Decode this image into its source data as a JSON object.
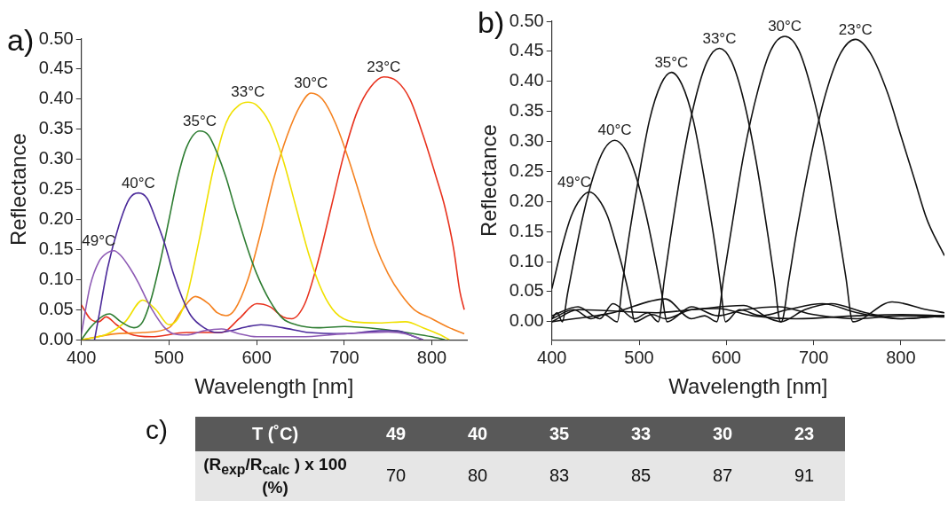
{
  "chart_data": [
    {
      "type": "line",
      "title": "a)",
      "xlabel": "Wavelength [nm]",
      "ylabel": "Reflectance",
      "xlim": [
        400,
        840
      ],
      "xticks": [
        400,
        500,
        600,
        700,
        800
      ],
      "ylim": [
        0,
        0.5
      ],
      "yticks": [
        {
          "value": 0,
          "label": "0.00"
        },
        {
          "value": 0.05,
          "label": "0.05"
        },
        {
          "value": 0.1,
          "label": "0.10"
        },
        {
          "value": 0.15,
          "label": "0.15"
        },
        {
          "value": 0.2,
          "label": "0.20"
        },
        {
          "value": 0.25,
          "label": "0.25"
        },
        {
          "value": 0.3,
          "label": "0.30"
        },
        {
          "value": 0.35,
          "label": "0.35"
        },
        {
          "value": 0.4,
          "label": "0.40"
        },
        {
          "value": 0.45,
          "label": "0.45"
        },
        {
          "value": 0.5,
          "label": "0.50"
        }
      ],
      "grid": false,
      "legend": false,
      "marker": "none",
      "line_style": "solid",
      "series": [
        {
          "name": "49°C",
          "color": "#8e5bb5",
          "x": [
            400,
            410,
            420,
            430,
            437,
            445,
            455,
            465,
            475,
            485,
            495,
            505,
            520,
            540,
            560,
            580,
            600,
            650,
            700,
            750,
            770,
            790
          ],
          "values": [
            0.01,
            0.09,
            0.13,
            0.145,
            0.148,
            0.14,
            0.12,
            0.095,
            0.065,
            0.04,
            0.02,
            0.01,
            0.008,
            0.015,
            0.018,
            0.01,
            0.005,
            0.005,
            0.01,
            0.013,
            0.01,
            0
          ]
        },
        {
          "name": "40°C",
          "color": "#4b2a9a",
          "x": [
            415,
            420,
            430,
            445,
            455,
            465,
            475,
            485,
            495,
            505,
            515,
            525,
            540,
            555,
            570,
            590,
            605,
            630,
            660,
            700,
            740,
            760,
            780,
            790
          ],
          "values": [
            0,
            0.04,
            0.12,
            0.2,
            0.235,
            0.244,
            0.235,
            0.2,
            0.16,
            0.11,
            0.07,
            0.04,
            0.02,
            0.012,
            0.015,
            0.022,
            0.025,
            0.02,
            0.012,
            0.01,
            0.015,
            0.015,
            0.005,
            0
          ]
        },
        {
          "name": "35°C",
          "color": "#2e7d32",
          "x": [
            400,
            410,
            425,
            432,
            445,
            460,
            470,
            480,
            490,
            500,
            510,
            520,
            535,
            545,
            555,
            565,
            575,
            590,
            600,
            615,
            630,
            645,
            670,
            700,
            740,
            780,
            800,
            815
          ],
          "values": [
            0,
            0.02,
            0.04,
            0.043,
            0.03,
            0.02,
            0.03,
            0.07,
            0.13,
            0.2,
            0.27,
            0.32,
            0.347,
            0.34,
            0.31,
            0.27,
            0.22,
            0.15,
            0.11,
            0.065,
            0.035,
            0.025,
            0.02,
            0.022,
            0.018,
            0.01,
            0.005,
            0
          ]
        },
        {
          "name": "33°C",
          "color": "#f0e000",
          "x": [
            400,
            430,
            450,
            470,
            485,
            500,
            510,
            520,
            535,
            550,
            565,
            580,
            590,
            600,
            615,
            630,
            645,
            660,
            675,
            690,
            710,
            740,
            770,
            790,
            810,
            820
          ],
          "values": [
            0,
            0.01,
            0.03,
            0.066,
            0.05,
            0.025,
            0.035,
            0.07,
            0.17,
            0.28,
            0.36,
            0.39,
            0.395,
            0.39,
            0.36,
            0.3,
            0.22,
            0.14,
            0.08,
            0.045,
            0.03,
            0.028,
            0.03,
            0.02,
            0.008,
            0
          ]
        },
        {
          "name": "30°C",
          "color": "#f58220",
          "x": [
            400,
            440,
            470,
            500,
            515,
            530,
            545,
            555,
            565,
            575,
            590,
            605,
            620,
            635,
            650,
            662,
            675,
            690,
            705,
            720,
            735,
            750,
            765,
            780,
            800,
            820,
            837
          ],
          "values": [
            0,
            0.01,
            0.012,
            0.02,
            0.05,
            0.072,
            0.06,
            0.045,
            0.04,
            0.05,
            0.1,
            0.18,
            0.27,
            0.34,
            0.39,
            0.41,
            0.4,
            0.36,
            0.3,
            0.23,
            0.16,
            0.11,
            0.075,
            0.05,
            0.035,
            0.02,
            0.01
          ]
        },
        {
          "name": "23°C",
          "color": "#e8321e",
          "x": [
            400,
            410,
            420,
            428,
            440,
            455,
            480,
            520,
            560,
            580,
            600,
            615,
            630,
            640,
            655,
            670,
            685,
            700,
            715,
            730,
            745,
            760,
            775,
            790,
            805,
            815,
            825,
            832,
            837
          ],
          "values": [
            0.058,
            0.035,
            0.03,
            0.038,
            0.025,
            0.01,
            0.005,
            0.012,
            0.012,
            0.035,
            0.06,
            0.055,
            0.038,
            0.035,
            0.06,
            0.13,
            0.22,
            0.31,
            0.38,
            0.42,
            0.437,
            0.43,
            0.4,
            0.34,
            0.27,
            0.22,
            0.15,
            0.08,
            0.05
          ]
        }
      ]
    },
    {
      "type": "line",
      "title": "b)",
      "xlabel": "Wavelength [nm]",
      "ylabel": "Reflectance",
      "xlim": [
        400,
        850
      ],
      "xticks": [
        400,
        500,
        600,
        700,
        800
      ],
      "ylim": [
        -0.03,
        0.5
      ],
      "yticks": [
        {
          "value": 0,
          "label": "0.00"
        },
        {
          "value": 0.05,
          "label": "0.05"
        },
        {
          "value": 0.1,
          "label": "0.10"
        },
        {
          "value": 0.15,
          "label": "0.15"
        },
        {
          "value": 0.2,
          "label": "0.20"
        },
        {
          "value": 0.25,
          "label": "0.25"
        },
        {
          "value": 0.3,
          "label": "0.30"
        },
        {
          "value": 0.35,
          "label": "0.35"
        },
        {
          "value": 0.4,
          "label": "0.40"
        },
        {
          "value": 0.45,
          "label": "0.45"
        },
        {
          "value": 0.5,
          "label": "0.50"
        }
      ],
      "grid": false,
      "legend": false,
      "marker": "none",
      "line_style": "solid",
      "series": [
        {
          "name": "49°C",
          "color": "#111111",
          "x": [
            400,
            412,
            422,
            433,
            443,
            453,
            464,
            474,
            485,
            490,
            495,
            515,
            530,
            560,
            590,
            630,
            680,
            750,
            800,
            850
          ],
          "values": [
            0.055,
            0.127,
            0.175,
            0.205,
            0.216,
            0.205,
            0.175,
            0.127,
            0.067,
            0.034,
            0,
            0.012,
            0.005,
            0.02,
            0.022,
            0.01,
            0.005,
            0.01,
            0.012,
            0.01
          ]
        },
        {
          "name": "40°C",
          "color": "#111111",
          "x": [
            400,
            406,
            412,
            418,
            424,
            436,
            448,
            460,
            472,
            484,
            496,
            508,
            520,
            526,
            532,
            560,
            590,
            620,
            660,
            700,
            750,
            800,
            850
          ],
          "values": [
            0.005,
            0.015,
            0,
            0.047,
            0.093,
            0.178,
            0.244,
            0.287,
            0.302,
            0.287,
            0.244,
            0.178,
            0.093,
            0.047,
            0,
            0.025,
            0.01,
            0.02,
            0.025,
            0.012,
            0.005,
            0.01,
            0.008
          ]
        },
        {
          "name": "35°C",
          "color": "#111111",
          "x": [
            400,
            425,
            445,
            460,
            475,
            481,
            487,
            500,
            512,
            525,
            537,
            549,
            562,
            574,
            587,
            593,
            599,
            615,
            640,
            670,
            710,
            750,
            800,
            850
          ],
          "values": [
            0.005,
            0.02,
            0.005,
            0.012,
            0,
            0.065,
            0.128,
            0.244,
            0.336,
            0.395,
            0.415,
            0.395,
            0.336,
            0.244,
            0.128,
            0.065,
            0,
            0.02,
            0.01,
            0.02,
            0.03,
            0.015,
            0.005,
            0.01
          ]
        },
        {
          "name": "33°C",
          "color": "#111111",
          "x": [
            400,
            430,
            455,
            470,
            495,
            510,
            522,
            529,
            536,
            550,
            564,
            578,
            592,
            606,
            620,
            634,
            648,
            655,
            662,
            690,
            720,
            760,
            800,
            850
          ],
          "values": [
            0.01,
            0.025,
            0.005,
            0.03,
            0.005,
            0.015,
            0,
            0.071,
            0.141,
            0.268,
            0.368,
            0.433,
            0.455,
            0.433,
            0.368,
            0.268,
            0.141,
            0.071,
            0,
            0.02,
            0.03,
            0.015,
            0.005,
            0.01
          ]
        },
        {
          "name": "30°C",
          "color": "#111111",
          "x": [
            400,
            470,
            530,
            560,
            575,
            589,
            597,
            605,
            620,
            636,
            651,
            667,
            683,
            698,
            714,
            729,
            737,
            745,
            790,
            830,
            850
          ],
          "values": [
            0,
            0.015,
            0.038,
            0.005,
            0.01,
            0,
            0.074,
            0.147,
            0.279,
            0.384,
            0.452,
            0.475,
            0.452,
            0.384,
            0.279,
            0.147,
            0.074,
            0,
            0.033,
            0.02,
            0.015
          ]
        },
        {
          "name": "23°C",
          "color": "#111111",
          "x": [
            400,
            430,
            520,
            560,
            620,
            650,
            663,
            672,
            680,
            697,
            714,
            731,
            748,
            765,
            785,
            800,
            815,
            830,
            850
          ],
          "values": [
            0,
            0.02,
            0.015,
            0.02,
            0.027,
            0.005,
            0,
            0.073,
            0.145,
            0.276,
            0.38,
            0.447,
            0.47,
            0.447,
            0.38,
            0.31,
            0.24,
            0.17,
            0.11
          ]
        }
      ]
    },
    {
      "type": "other",
      "title": "c)",
      "xlabel": "T (˚C)",
      "ylabel": "(R$_{exp}$/R$_{calc}$ ) x 100 (%)",
      "categories": [
        "49",
        "40",
        "35",
        "33",
        "30",
        "23"
      ],
      "values": [
        70,
        80,
        83,
        85,
        87,
        91
      ],
      "data_labels": true
    }
  ]
}
